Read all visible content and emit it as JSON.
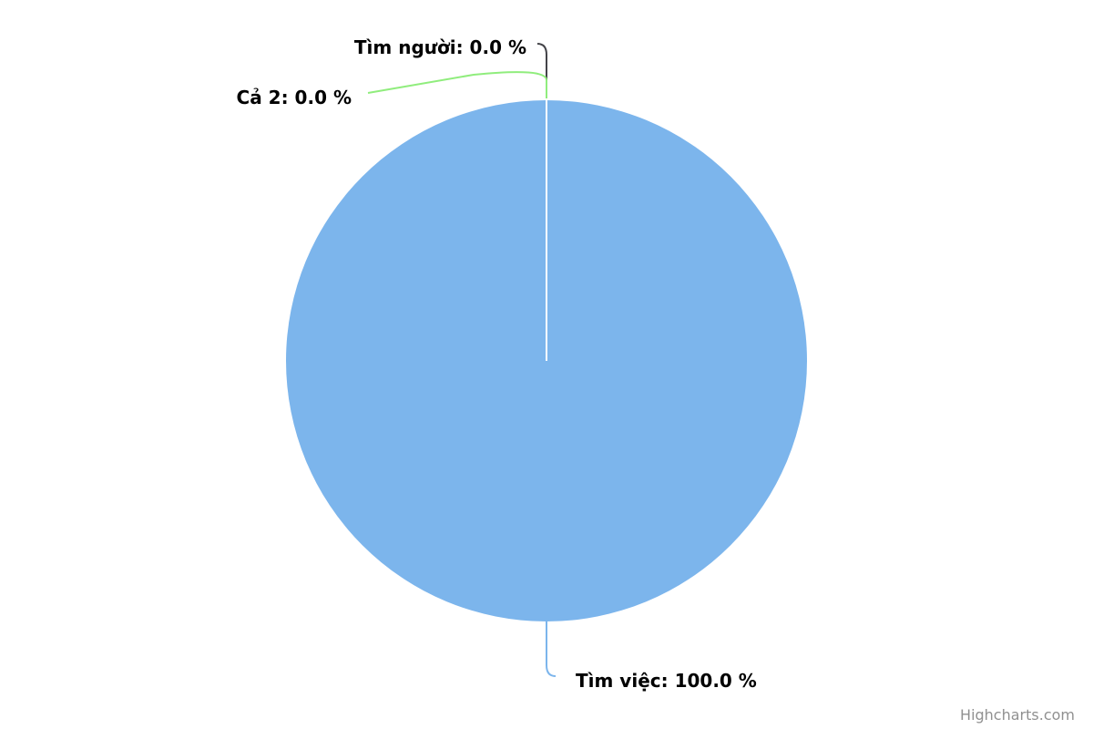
{
  "chart_data": {
    "type": "pie",
    "title": "",
    "series": [
      {
        "data": [
          {
            "name": "Tìm việc",
            "value": 100.0,
            "label": "Tìm việc: 100.0 %",
            "color": "#7cb5ec"
          },
          {
            "name": "Tìm người",
            "value": 0.0,
            "label": "Tìm người: 0.0 %",
            "color": "#434348"
          },
          {
            "name": "Cả 2",
            "value": 0.0,
            "label": "Cả 2: 0.0 %",
            "color": "#90ed7d"
          }
        ]
      }
    ],
    "legend": "none"
  },
  "credits": {
    "text": "Highcharts.com"
  },
  "colors": {
    "slice_border": "#ffffff",
    "label_text": "#000000",
    "credits_text": "#909090"
  }
}
